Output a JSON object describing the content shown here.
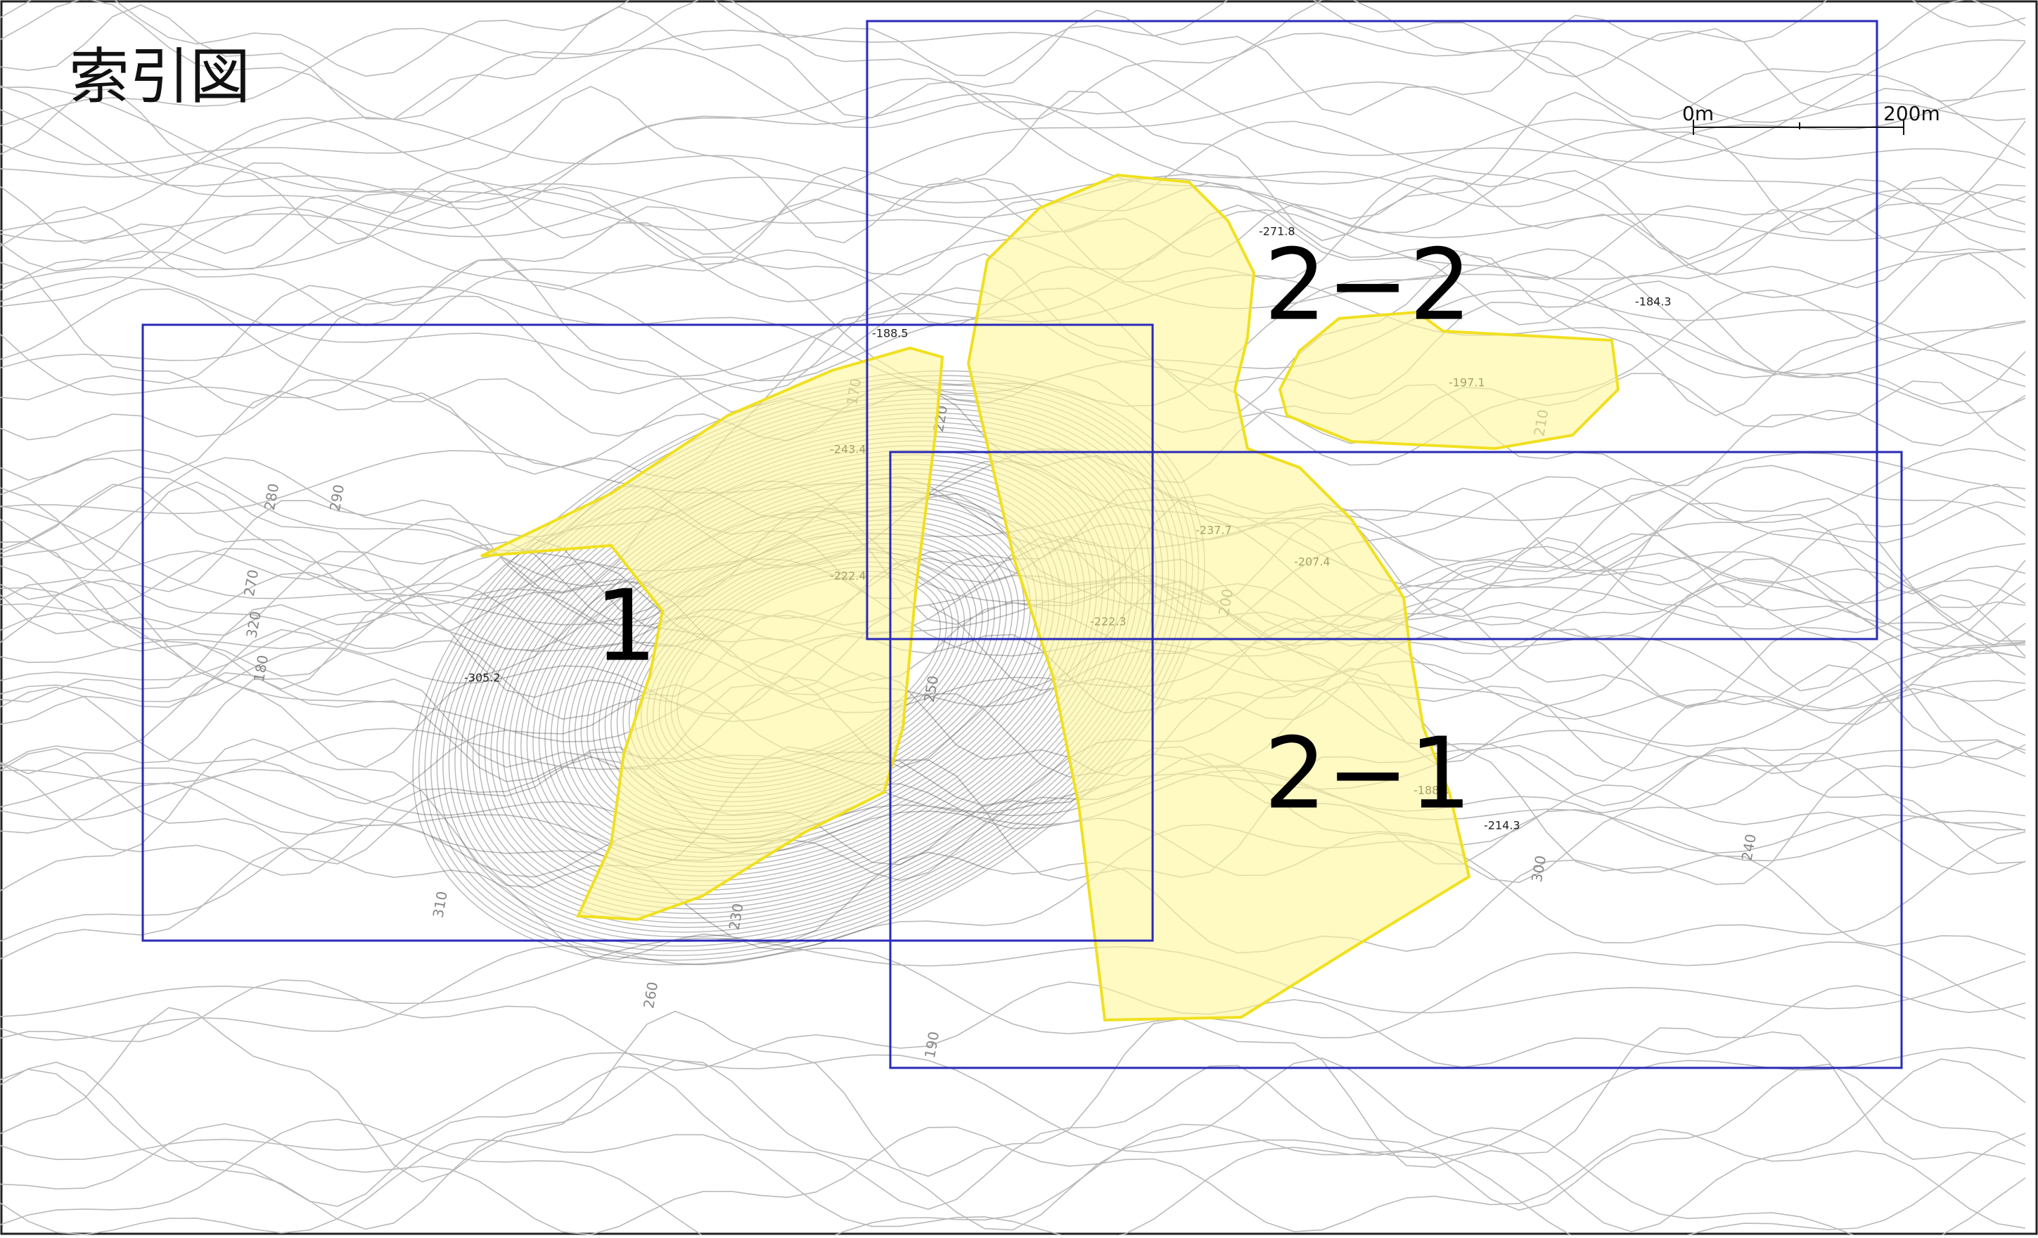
{
  "title": "索引図",
  "scale": {
    "start": "0m",
    "end": "200m"
  },
  "sheets": [
    {
      "label": "1"
    },
    {
      "label": "2−2"
    },
    {
      "label": "2−1"
    }
  ],
  "contour_labels": [
    "290",
    "280",
    "270",
    "260",
    "250",
    "240",
    "230",
    "220",
    "210",
    "200",
    "190",
    "180",
    "170",
    "300",
    "310",
    "320"
  ],
  "spot_heights": [
    "-305.2",
    "-222.4",
    "-243.4",
    "-188.5",
    "-207.4",
    "-197.1",
    "-184.3",
    "-188.9",
    "-271.8",
    "-214.3",
    "-237.7",
    "-222.3"
  ]
}
